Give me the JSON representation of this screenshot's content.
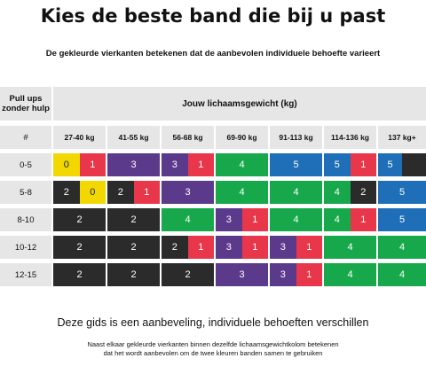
{
  "title": "Kies de beste band die bij u past",
  "subtitle": "De gekleurde vierkanten betekenen dat de aanbevolen individuele behoefte varieert",
  "header": {
    "pullups_label": "Pull ups zonder hulp",
    "weight_label": "Jouw lichaamsgewicht (kg)",
    "row_header": "#",
    "weight_columns": [
      "27-40 kg",
      "41-55 kg",
      "56-68 kg",
      "69-90 kg",
      "91-113 kg",
      "114-136 kg",
      "137 kg+"
    ]
  },
  "colors": {
    "yellow": "#f2d800",
    "red": "#e8374a",
    "black": "#2b2b2b",
    "purple": "#5b3a8c",
    "green": "#16a84a",
    "blue": "#1e6fb8",
    "header_gray": "#e6e6e6"
  },
  "rows": [
    {
      "label": "0-5",
      "cells": [
        [
          {
            "n": "0",
            "c": "yellow"
          },
          {
            "n": "1",
            "c": "red"
          }
        ],
        [
          {
            "n": "3",
            "c": "purple"
          }
        ],
        [
          {
            "n": "3",
            "c": "purple"
          },
          {
            "n": "1",
            "c": "red"
          }
        ],
        [
          {
            "n": "4",
            "c": "green"
          }
        ],
        [
          {
            "n": "5",
            "c": "blue"
          }
        ],
        [
          {
            "n": "5",
            "c": "blue"
          },
          {
            "n": "1",
            "c": "red"
          }
        ],
        [
          {
            "n": "5",
            "c": "blue"
          },
          {
            "n": "",
            "c": "black"
          }
        ]
      ]
    },
    {
      "label": "5-8",
      "cells": [
        [
          {
            "n": "2",
            "c": "black"
          },
          {
            "n": "0",
            "c": "yellow"
          }
        ],
        [
          {
            "n": "2",
            "c": "black"
          },
          {
            "n": "1",
            "c": "red"
          }
        ],
        [
          {
            "n": "3",
            "c": "purple"
          }
        ],
        [
          {
            "n": "4",
            "c": "green"
          }
        ],
        [
          {
            "n": "4",
            "c": "green"
          }
        ],
        [
          {
            "n": "4",
            "c": "green"
          },
          {
            "n": "2",
            "c": "black"
          }
        ],
        [
          {
            "n": "5",
            "c": "blue"
          }
        ]
      ]
    },
    {
      "label": "8-10",
      "cells": [
        [
          {
            "n": "2",
            "c": "black"
          }
        ],
        [
          {
            "n": "2",
            "c": "black"
          }
        ],
        [
          {
            "n": "4",
            "c": "green"
          }
        ],
        [
          {
            "n": "3",
            "c": "purple"
          },
          {
            "n": "1",
            "c": "red"
          }
        ],
        [
          {
            "n": "4",
            "c": "green"
          }
        ],
        [
          {
            "n": "4",
            "c": "green"
          },
          {
            "n": "1",
            "c": "red"
          }
        ],
        [
          {
            "n": "5",
            "c": "blue"
          }
        ]
      ]
    },
    {
      "label": "10-12",
      "cells": [
        [
          {
            "n": "2",
            "c": "black"
          }
        ],
        [
          {
            "n": "2",
            "c": "black"
          }
        ],
        [
          {
            "n": "2",
            "c": "black"
          },
          {
            "n": "1",
            "c": "red"
          }
        ],
        [
          {
            "n": "3",
            "c": "purple"
          },
          {
            "n": "1",
            "c": "red"
          }
        ],
        [
          {
            "n": "3",
            "c": "purple"
          },
          {
            "n": "1",
            "c": "red"
          }
        ],
        [
          {
            "n": "4",
            "c": "green"
          }
        ],
        [
          {
            "n": "4",
            "c": "green"
          }
        ]
      ]
    },
    {
      "label": "12-15",
      "cells": [
        [
          {
            "n": "2",
            "c": "black"
          }
        ],
        [
          {
            "n": "2",
            "c": "black"
          }
        ],
        [
          {
            "n": "2",
            "c": "black"
          }
        ],
        [
          {
            "n": "3",
            "c": "purple"
          }
        ],
        [
          {
            "n": "3",
            "c": "purple"
          },
          {
            "n": "1",
            "c": "red"
          }
        ],
        [
          {
            "n": "4",
            "c": "green"
          }
        ],
        [
          {
            "n": "4",
            "c": "green"
          }
        ]
      ]
    }
  ],
  "footer": {
    "main": "Deze gids is een aanbeveling, individuele behoeften verschillen",
    "note_line1": "Naast elkaar gekleurde vierkanten binnen dezelfde lichaamsgewichtkolom betekenen",
    "note_line2": "dat het wordt aanbevolen om de twee kleuren banden samen te gebruiken"
  }
}
